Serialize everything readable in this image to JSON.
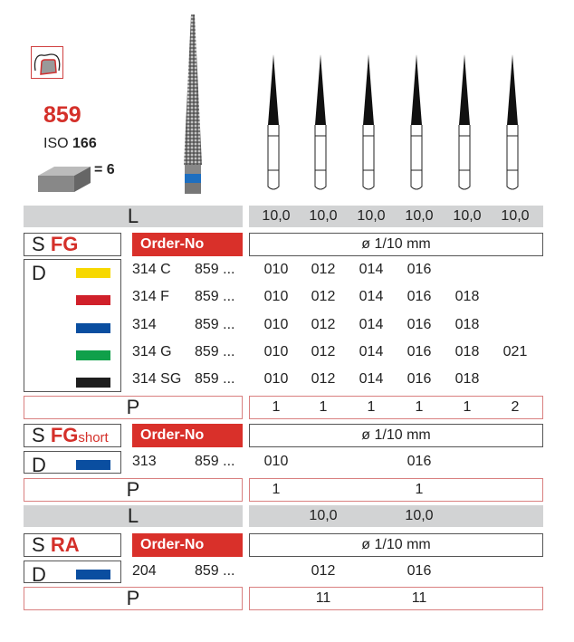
{
  "header": {
    "model": "859",
    "iso_label": "ISO",
    "iso_value": "166",
    "pack": "= 6",
    "icon": "crown-preparation-icon"
  },
  "labels": {
    "L": "L",
    "S": "S",
    "D": "D",
    "P": "P",
    "order_no": "Order-No",
    "diameter": "ø 1/10 mm"
  },
  "sections": [
    {
      "shank": "FG",
      "shank_suffix": "",
      "lengths": [
        "10,0",
        "10,0",
        "10,0",
        "10,0",
        "10,0",
        "10,0"
      ],
      "rows": [
        {
          "color": "#f7d800",
          "code": "314 C",
          "fig": "859 ...",
          "sizes": [
            "010",
            "012",
            "014",
            "016",
            "",
            ""
          ]
        },
        {
          "color": "#d0202a",
          "code": "314 F",
          "fig": "859 ...",
          "sizes": [
            "010",
            "012",
            "014",
            "016",
            "018",
            ""
          ]
        },
        {
          "color": "#0a4ea0",
          "code": "314",
          "fig": "859 ...",
          "sizes": [
            "010",
            "012",
            "014",
            "016",
            "018",
            ""
          ]
        },
        {
          "color": "#10a04a",
          "code": "314 G",
          "fig": "859 ...",
          "sizes": [
            "010",
            "012",
            "014",
            "016",
            "018",
            "021"
          ]
        },
        {
          "color": "#1e1e1e",
          "code": "314 SG",
          "fig": "859 ...",
          "sizes": [
            "010",
            "012",
            "014",
            "016",
            "018",
            ""
          ]
        }
      ],
      "pack": [
        "1",
        "1",
        "1",
        "1",
        "1",
        "2"
      ]
    },
    {
      "shank": "FG",
      "shank_suffix": "short",
      "rows": [
        {
          "color": "#0a4ea0",
          "code": "313",
          "fig": "859 ...",
          "sizes": [
            "010",
            "",
            "",
            "016",
            "",
            ""
          ]
        }
      ],
      "pack": [
        "1",
        "",
        "",
        "1",
        "",
        ""
      ]
    },
    {
      "shank": "RA",
      "shank_suffix": "",
      "lengths": [
        "",
        "10,0",
        "",
        "10,0",
        "",
        ""
      ],
      "rows": [
        {
          "color": "#0a4ea0",
          "code": "204",
          "fig": "859 ...",
          "sizes": [
            "",
            "012",
            "",
            "016",
            "",
            ""
          ]
        }
      ],
      "pack": [
        "",
        "11",
        "",
        "11",
        "",
        ""
      ]
    }
  ]
}
